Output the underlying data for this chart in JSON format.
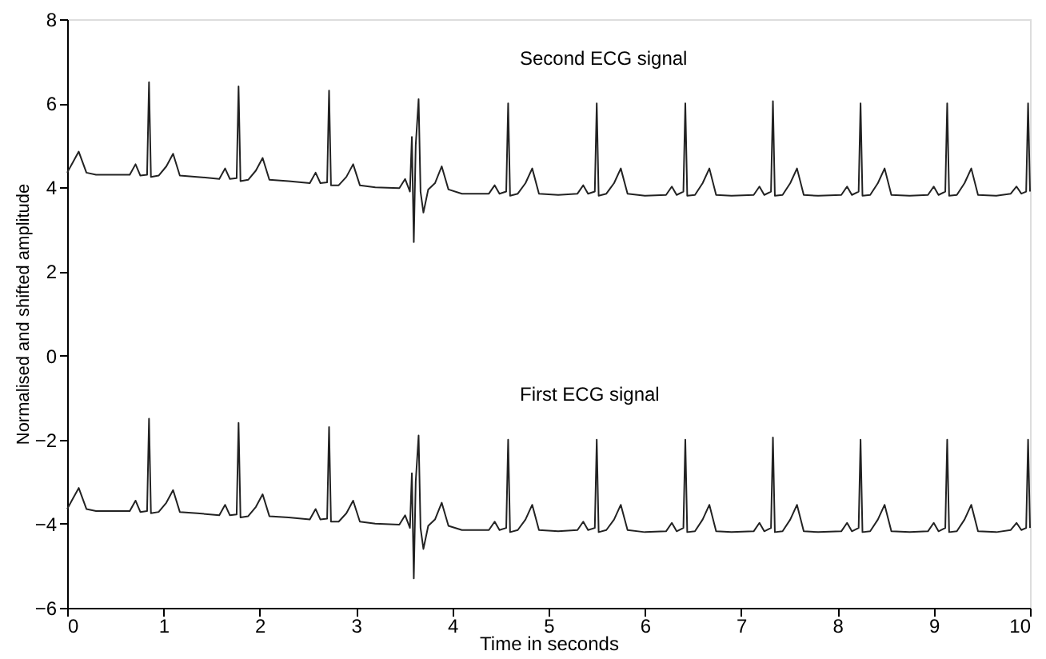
{
  "chart_data": {
    "type": "line",
    "xlabel": "Time in seconds",
    "ylabel": "Normalised and shifted amplitude",
    "xlim": [
      0,
      10
    ],
    "xticks": [
      0,
      1,
      2,
      3,
      4,
      5,
      6,
      7,
      8,
      9,
      10
    ],
    "ylim": [
      -6,
      8
    ],
    "yticks": [
      -6,
      -4,
      -2,
      0,
      2,
      4,
      6,
      8
    ],
    "grid": false,
    "marker": "none",
    "line_style": "solid",
    "x": [
      0,
      0.06,
      0.12,
      0.2,
      0.3,
      0.5,
      0.65,
      0.71,
      0.76,
      0.83,
      0.85,
      0.87,
      0.95,
      1.03,
      1.1,
      1.17,
      1.35,
      1.58,
      1.64,
      1.69,
      1.76,
      1.78,
      1.8,
      1.88,
      1.96,
      2.03,
      2.1,
      2.3,
      2.52,
      2.58,
      2.63,
      2.7,
      2.72,
      2.74,
      2.82,
      2.9,
      2.97,
      3.04,
      3.2,
      3.45,
      3.51,
      3.56,
      3.58,
      3.6,
      3.62,
      3.65,
      3.67,
      3.7,
      3.75,
      3.82,
      3.89,
      3.96,
      4.1,
      4.38,
      4.44,
      4.49,
      4.56,
      4.58,
      4.6,
      4.68,
      4.76,
      4.83,
      4.9,
      5.1,
      5.3,
      5.36,
      5.41,
      5.48,
      5.5,
      5.52,
      5.6,
      5.68,
      5.75,
      5.82,
      6.0,
      6.22,
      6.28,
      6.33,
      6.4,
      6.42,
      6.44,
      6.52,
      6.6,
      6.67,
      6.74,
      6.9,
      7.13,
      7.19,
      7.24,
      7.31,
      7.33,
      7.35,
      7.43,
      7.51,
      7.58,
      7.65,
      7.8,
      8.04,
      8.1,
      8.15,
      8.22,
      8.24,
      8.26,
      8.34,
      8.42,
      8.49,
      8.56,
      8.75,
      8.94,
      9.0,
      9.05,
      9.12,
      9.14,
      9.16,
      9.24,
      9.32,
      9.39,
      9.46,
      9.65,
      9.8,
      9.86,
      9.91,
      9.96,
      9.98,
      10.0
    ],
    "series": [
      {
        "name": "Second ECG signal",
        "color": "#222222",
        "values": [
          4.35,
          4.6,
          4.85,
          4.35,
          4.3,
          4.3,
          4.3,
          4.55,
          4.28,
          4.3,
          6.5,
          4.25,
          4.28,
          4.5,
          4.8,
          4.28,
          4.25,
          4.2,
          4.45,
          4.2,
          4.22,
          6.4,
          4.15,
          4.18,
          4.4,
          4.7,
          4.18,
          4.15,
          4.1,
          4.35,
          4.1,
          4.12,
          6.3,
          4.05,
          4.05,
          4.25,
          4.55,
          4.05,
          4.0,
          3.98,
          4.2,
          3.9,
          5.2,
          2.7,
          5.0,
          6.1,
          3.9,
          3.4,
          3.95,
          4.1,
          4.5,
          3.95,
          3.85,
          3.85,
          4.05,
          3.85,
          3.9,
          6.0,
          3.8,
          3.85,
          4.1,
          4.45,
          3.85,
          3.82,
          3.85,
          4.05,
          3.85,
          3.9,
          6.0,
          3.8,
          3.85,
          4.1,
          4.45,
          3.85,
          3.8,
          3.82,
          4.02,
          3.82,
          3.9,
          6.0,
          3.8,
          3.82,
          4.1,
          4.45,
          3.82,
          3.8,
          3.82,
          4.02,
          3.82,
          3.9,
          6.05,
          3.8,
          3.82,
          4.1,
          4.45,
          3.82,
          3.8,
          3.82,
          4.02,
          3.82,
          3.9,
          6.0,
          3.8,
          3.82,
          4.1,
          4.45,
          3.82,
          3.8,
          3.82,
          4.02,
          3.82,
          3.9,
          6.0,
          3.8,
          3.82,
          4.1,
          4.45,
          3.82,
          3.8,
          3.85,
          4.02,
          3.85,
          3.9,
          6.0,
          3.9
        ]
      },
      {
        "name": "First ECG signal",
        "color": "#222222",
        "values": [
          -3.65,
          -3.4,
          -3.15,
          -3.65,
          -3.7,
          -3.7,
          -3.7,
          -3.45,
          -3.72,
          -3.7,
          -1.5,
          -3.75,
          -3.72,
          -3.5,
          -3.2,
          -3.72,
          -3.75,
          -3.8,
          -3.55,
          -3.8,
          -3.78,
          -1.6,
          -3.85,
          -3.82,
          -3.6,
          -3.3,
          -3.82,
          -3.85,
          -3.9,
          -3.65,
          -3.9,
          -3.88,
          -1.7,
          -3.95,
          -3.95,
          -3.75,
          -3.45,
          -3.95,
          -4.0,
          -4.02,
          -3.8,
          -4.1,
          -2.8,
          -5.3,
          -3.0,
          -1.9,
          -4.1,
          -4.6,
          -4.05,
          -3.9,
          -3.5,
          -4.05,
          -4.15,
          -4.15,
          -3.95,
          -4.15,
          -4.1,
          -2.0,
          -4.2,
          -4.15,
          -3.9,
          -3.55,
          -4.15,
          -4.18,
          -4.15,
          -3.95,
          -4.15,
          -4.1,
          -2.0,
          -4.2,
          -4.15,
          -3.9,
          -3.55,
          -4.15,
          -4.2,
          -4.18,
          -3.98,
          -4.18,
          -4.1,
          -2.0,
          -4.2,
          -4.18,
          -3.9,
          -3.55,
          -4.18,
          -4.2,
          -4.18,
          -3.98,
          -4.18,
          -4.1,
          -1.95,
          -4.2,
          -4.18,
          -3.9,
          -3.55,
          -4.18,
          -4.2,
          -4.18,
          -3.98,
          -4.18,
          -4.1,
          -2.0,
          -4.2,
          -4.18,
          -3.9,
          -3.55,
          -4.18,
          -4.2,
          -4.18,
          -3.98,
          -4.18,
          -4.1,
          -2.0,
          -4.2,
          -4.18,
          -3.9,
          -3.55,
          -4.18,
          -4.2,
          -4.15,
          -3.98,
          -4.15,
          -4.1,
          -2.0,
          -4.1
        ]
      }
    ]
  }
}
